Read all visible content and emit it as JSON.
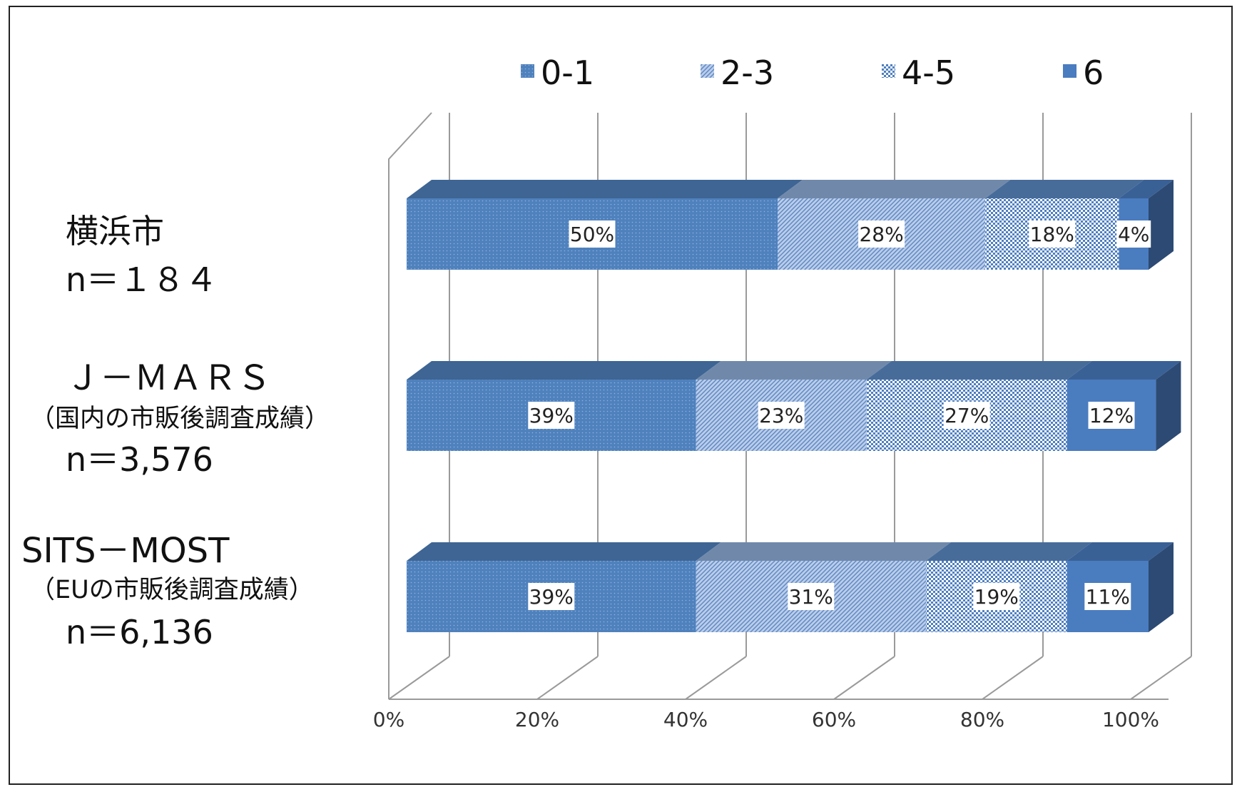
{
  "chart_data": {
    "type": "bar",
    "orientation": "horizontal",
    "stacked": "percent",
    "style_3d": true,
    "legend_position": "top",
    "grid": true,
    "xlim": [
      0,
      100
    ],
    "x_ticks": [
      "0%",
      "20%",
      "40%",
      "60%",
      "80%",
      "100%"
    ],
    "categories": [
      {
        "lines": [
          "横浜市",
          "n＝１８４"
        ]
      },
      {
        "lines": [
          "Ｊ－ＭＡＲＳ",
          "（国内の市販後調査成績）",
          "n＝3,576"
        ]
      },
      {
        "lines": [
          "SITS－MOST",
          "（EUの市販後調査成績）",
          "n＝6,136"
        ]
      }
    ],
    "series": [
      {
        "name": "0-1",
        "color": "#4f81bd",
        "pattern": "dots",
        "values": [
          50,
          39,
          39
        ],
        "labels": [
          "50%",
          "39%",
          "39%"
        ]
      },
      {
        "name": "2-3",
        "color": "#8fb0db",
        "pattern": "diagonal",
        "values": [
          28,
          23,
          31
        ],
        "labels": [
          "28%",
          "23%",
          "31%"
        ]
      },
      {
        "name": "4-5",
        "color": "#5b8ac6",
        "pattern": "checker",
        "values": [
          18,
          27,
          19
        ],
        "labels": [
          "18%",
          "27%",
          "19%"
        ]
      },
      {
        "name": "6",
        "color": "#4a7cc0",
        "pattern": "solid",
        "values": [
          4,
          12,
          11
        ],
        "labels": [
          "4%",
          "12%",
          "11%"
        ]
      }
    ]
  }
}
